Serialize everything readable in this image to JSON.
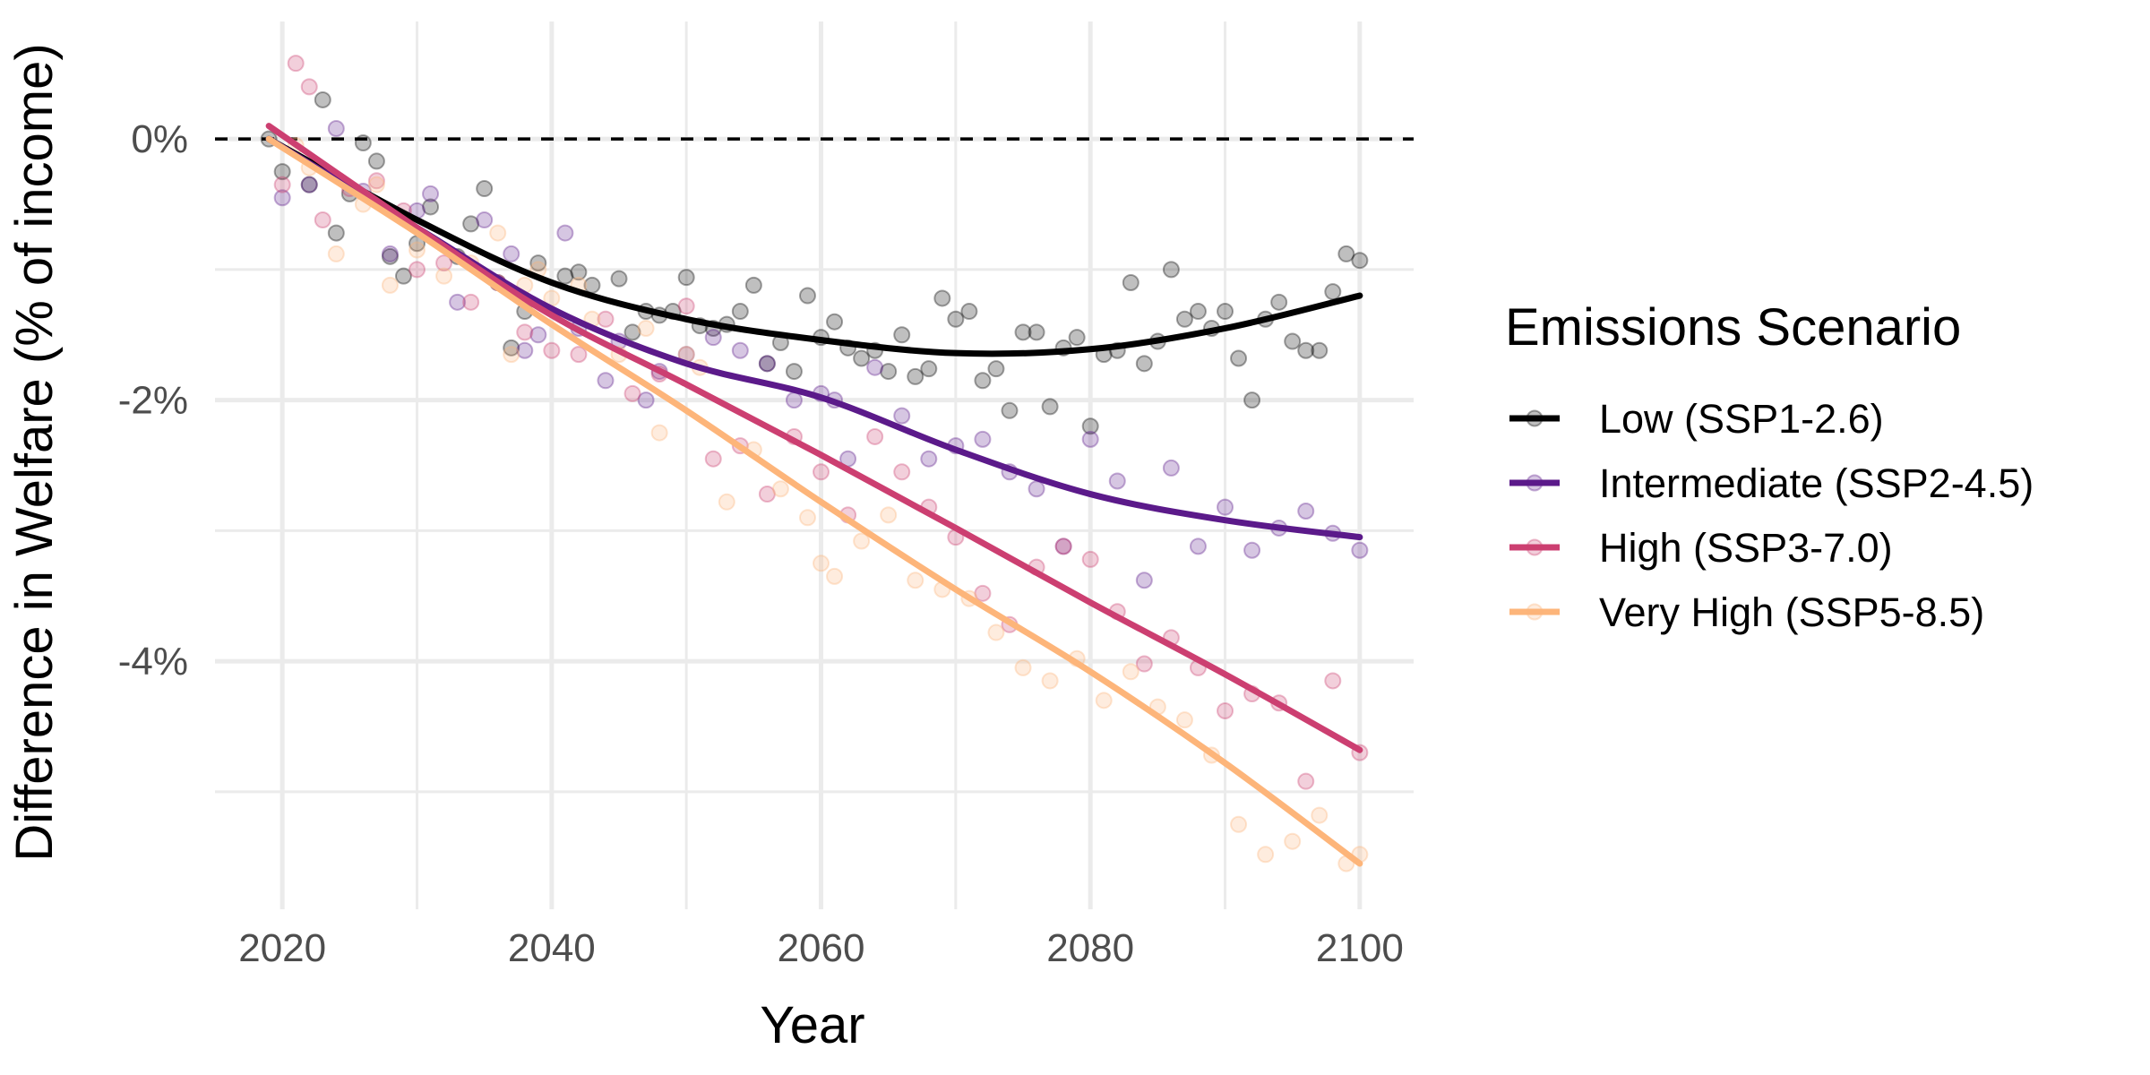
{
  "chart_data": {
    "type": "scatter",
    "title": "",
    "xlabel": "Year",
    "ylabel": "Difference in Welfare (% of income)",
    "xlim": [
      2015,
      2104
    ],
    "ylim": [
      -5.9,
      0.9
    ],
    "x_ticks": [
      2020,
      2040,
      2060,
      2080,
      2100
    ],
    "x_tick_labels": [
      "2020",
      "2040",
      "2060",
      "2080",
      "2100"
    ],
    "y_ticks": [
      0,
      -2,
      -4
    ],
    "y_tick_labels": [
      "0%",
      "-2%",
      "-4%"
    ],
    "y_minor_ticks": [
      -1,
      -3,
      -5
    ],
    "x_minor_ticks": [
      2030,
      2050,
      2070,
      2090
    ],
    "reference_line": {
      "y": 0,
      "style": "dashed"
    },
    "grid": true,
    "legend": {
      "title": "Emissions Scenario",
      "placement": "right"
    },
    "series": [
      {
        "name": "Low (SSP1-2.6)",
        "color": "#000000",
        "trend": {
          "x": [
            2019,
            2030,
            2040,
            2050,
            2060,
            2070,
            2080,
            2090,
            2100
          ],
          "y": [
            0.0,
            -0.62,
            -1.1,
            -1.38,
            -1.54,
            -1.64,
            -1.61,
            -1.45,
            -1.2
          ]
        },
        "points": {
          "x": [
            2019,
            2020,
            2022,
            2023,
            2024,
            2025,
            2026,
            2027,
            2028,
            2029,
            2030,
            2031,
            2033,
            2034,
            2035,
            2036,
            2037,
            2038,
            2039,
            2041,
            2042,
            2043,
            2045,
            2046,
            2047,
            2048,
            2049,
            2050,
            2051,
            2052,
            2053,
            2054,
            2055,
            2056,
            2057,
            2058,
            2059,
            2060,
            2061,
            2062,
            2063,
            2064,
            2065,
            2066,
            2067,
            2068,
            2069,
            2070,
            2071,
            2072,
            2073,
            2074,
            2075,
            2076,
            2077,
            2078,
            2079,
            2080,
            2081,
            2082,
            2083,
            2084,
            2085,
            2086,
            2087,
            2088,
            2089,
            2090,
            2091,
            2092,
            2093,
            2094,
            2095,
            2096,
            2097,
            2098,
            2099,
            2100
          ],
          "y": [
            0.0,
            -0.25,
            -0.35,
            0.3,
            -0.72,
            -0.42,
            -0.03,
            -0.17,
            -0.9,
            -1.05,
            -0.8,
            -0.52,
            -0.9,
            -0.65,
            -0.38,
            -1.1,
            -1.6,
            -1.32,
            -0.95,
            -1.05,
            -1.02,
            -1.12,
            -1.07,
            -1.48,
            -1.32,
            -1.35,
            -1.32,
            -1.06,
            -1.43,
            -1.45,
            -1.42,
            -1.32,
            -1.12,
            -1.72,
            -1.56,
            -1.78,
            -1.2,
            -1.52,
            -1.4,
            -1.6,
            -1.68,
            -1.62,
            -1.78,
            -1.5,
            -1.82,
            -1.76,
            -1.22,
            -1.38,
            -1.32,
            -1.85,
            -1.76,
            -2.08,
            -1.48,
            -1.48,
            -2.05,
            -1.6,
            -1.52,
            -2.2,
            -1.65,
            -1.62,
            -1.1,
            -1.72,
            -1.55,
            -1.0,
            -1.38,
            -1.32,
            -1.45,
            -1.32,
            -1.68,
            -2.0,
            -1.38,
            -1.25,
            -1.55,
            -1.62,
            -1.62,
            -1.17,
            -0.88,
            -0.93
          ]
        }
      },
      {
        "name": "Intermediate (SSP2-4.5)",
        "color": "#5b1a8a",
        "trend": {
          "x": [
            2019,
            2030,
            2040,
            2050,
            2060,
            2070,
            2080,
            2090,
            2100
          ],
          "y": [
            0.0,
            -0.68,
            -1.3,
            -1.72,
            -1.98,
            -2.38,
            -2.72,
            -2.92,
            -3.05
          ]
        },
        "points": {
          "x": [
            2020,
            2022,
            2024,
            2026,
            2028,
            2030,
            2031,
            2033,
            2035,
            2037,
            2038,
            2039,
            2041,
            2042,
            2044,
            2045,
            2047,
            2048,
            2050,
            2052,
            2054,
            2056,
            2058,
            2060,
            2061,
            2062,
            2064,
            2066,
            2068,
            2070,
            2072,
            2074,
            2076,
            2078,
            2080,
            2082,
            2084,
            2086,
            2088,
            2090,
            2092,
            2094,
            2096,
            2098,
            2100
          ],
          "y": [
            -0.45,
            -0.35,
            0.08,
            -0.4,
            -0.88,
            -0.55,
            -0.42,
            -1.25,
            -0.62,
            -0.88,
            -1.62,
            -1.5,
            -0.72,
            -1.45,
            -1.85,
            -1.55,
            -2.0,
            -1.78,
            -1.65,
            -1.52,
            -1.62,
            -1.72,
            -2.0,
            -1.95,
            -2.0,
            -2.45,
            -1.75,
            -2.12,
            -2.45,
            -2.35,
            -2.3,
            -2.55,
            -2.68,
            -3.12,
            -2.3,
            -2.62,
            -3.38,
            -2.52,
            -3.12,
            -2.82,
            -3.15,
            -2.98,
            -2.85,
            -3.02,
            -3.15
          ]
        }
      },
      {
        "name": "High (SSP3-7.0)",
        "color": "#cc3f71",
        "trend": {
          "x": [
            2019,
            2030,
            2040,
            2050,
            2060,
            2070,
            2080,
            2090,
            2100
          ],
          "y": [
            0.1,
            -0.68,
            -1.35,
            -1.88,
            -2.42,
            -2.98,
            -3.55,
            -4.1,
            -4.68
          ]
        },
        "points": {
          "x": [
            2020,
            2021,
            2022,
            2023,
            2025,
            2027,
            2029,
            2030,
            2032,
            2034,
            2036,
            2038,
            2040,
            2042,
            2044,
            2046,
            2048,
            2050,
            2052,
            2054,
            2056,
            2058,
            2060,
            2062,
            2064,
            2066,
            2068,
            2070,
            2072,
            2074,
            2076,
            2078,
            2080,
            2082,
            2084,
            2086,
            2088,
            2090,
            2092,
            2094,
            2096,
            2098,
            2100
          ],
          "y": [
            -0.35,
            0.58,
            0.4,
            -0.62,
            -0.38,
            -0.32,
            -0.55,
            -1.0,
            -0.95,
            -1.25,
            -1.1,
            -1.48,
            -1.62,
            -1.65,
            -1.38,
            -1.95,
            -1.8,
            -1.28,
            -2.45,
            -2.35,
            -2.72,
            -2.28,
            -2.55,
            -2.88,
            -2.28,
            -2.55,
            -2.82,
            -3.05,
            -3.48,
            -3.72,
            -3.28,
            -3.12,
            -3.22,
            -3.62,
            -4.02,
            -3.82,
            -4.05,
            -4.38,
            -4.25,
            -4.32,
            -4.92,
            -4.15,
            -4.7
          ]
        }
      },
      {
        "name": "Very High (SSP5-8.5)",
        "color": "#fdb57a",
        "trend": {
          "x": [
            2019,
            2030,
            2040,
            2050,
            2060,
            2070,
            2080,
            2090,
            2100
          ],
          "y": [
            0.0,
            -0.72,
            -1.42,
            -2.08,
            -2.78,
            -3.45,
            -4.08,
            -4.78,
            -5.55
          ]
        },
        "points": {
          "x": [
            2021,
            2022,
            2024,
            2026,
            2027,
            2028,
            2030,
            2032,
            2034,
            2036,
            2037,
            2038,
            2039,
            2040,
            2042,
            2043,
            2045,
            2047,
            2048,
            2050,
            2051,
            2053,
            2055,
            2057,
            2059,
            2060,
            2061,
            2063,
            2065,
            2067,
            2069,
            2071,
            2073,
            2075,
            2077,
            2079,
            2081,
            2083,
            2085,
            2087,
            2089,
            2091,
            2093,
            2095,
            2097,
            2099,
            2100
          ],
          "y": [
            -0.05,
            -0.22,
            -0.88,
            -0.5,
            -0.35,
            -1.12,
            -0.85,
            -1.05,
            -0.95,
            -0.72,
            -1.65,
            -1.12,
            -1.0,
            -1.22,
            -1.12,
            -1.38,
            -1.65,
            -1.45,
            -2.25,
            -1.65,
            -1.75,
            -2.78,
            -2.38,
            -2.68,
            -2.9,
            -3.25,
            -3.35,
            -3.08,
            -2.88,
            -3.38,
            -3.45,
            -3.52,
            -3.78,
            -4.05,
            -4.15,
            -3.98,
            -4.3,
            -4.08,
            -4.35,
            -4.45,
            -4.72,
            -5.25,
            -5.48,
            -5.38,
            -5.18,
            -5.55,
            -5.48
          ]
        }
      }
    ]
  }
}
